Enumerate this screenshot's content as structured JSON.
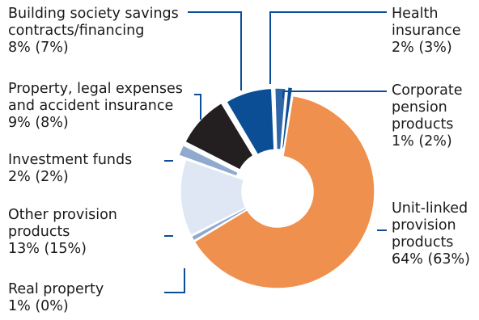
{
  "chart_data": {
    "type": "pie",
    "donut": true,
    "colors": {
      "dark_blue": "#0b4e96",
      "mid_blue": "#2f66a8",
      "orange": "#f0904f",
      "light_blue": "#8fa9cf",
      "pale_blue": "#dfe7f4",
      "black": "#231f20",
      "leader": "#0b4e96"
    },
    "slices": [
      {
        "name": "Corporate pension products",
        "value": 1,
        "label_lines": [
          "Corporate",
          "pension",
          "products"
        ],
        "pct_text": "1% (2%)",
        "color": "#0b4e96"
      },
      {
        "name": "Unit-linked provision products",
        "value": 64,
        "label_lines": [
          "Unit-linked",
          "provision",
          "products"
        ],
        "pct_text": "64% (63%)",
        "color": "#f0904f"
      },
      {
        "name": "Real property",
        "value": 1,
        "label_lines": [
          "Real property"
        ],
        "pct_text": "1% (0%)",
        "color": "#8fa9cf"
      },
      {
        "name": "Other provision products",
        "value": 13,
        "label_lines": [
          "Other provision",
          "products"
        ],
        "pct_text": "13% (15%)",
        "color": "#dfe7f4"
      },
      {
        "name": "Investment funds",
        "value": 2,
        "label_lines": [
          "Investment funds"
        ],
        "pct_text": "2% (2%)",
        "color": "#8fa9cf"
      },
      {
        "name": "Property, legal expenses and accident insurance",
        "value": 9,
        "label_lines": [
          "Property, legal expenses",
          "and accident insurance"
        ],
        "pct_text": "9% (8%)",
        "color": "#231f20"
      },
      {
        "name": "Building society savings contracts/financing",
        "value": 8,
        "label_lines": [
          "Building society savings",
          "contracts/financing"
        ],
        "pct_text": "8% (7%)",
        "color": "#0b4e96"
      },
      {
        "name": "Health insurance",
        "value": 2,
        "label_lines": [
          "Health",
          "insurance"
        ],
        "pct_text": "2% (3%)",
        "color": "#2f66a8"
      }
    ]
  }
}
